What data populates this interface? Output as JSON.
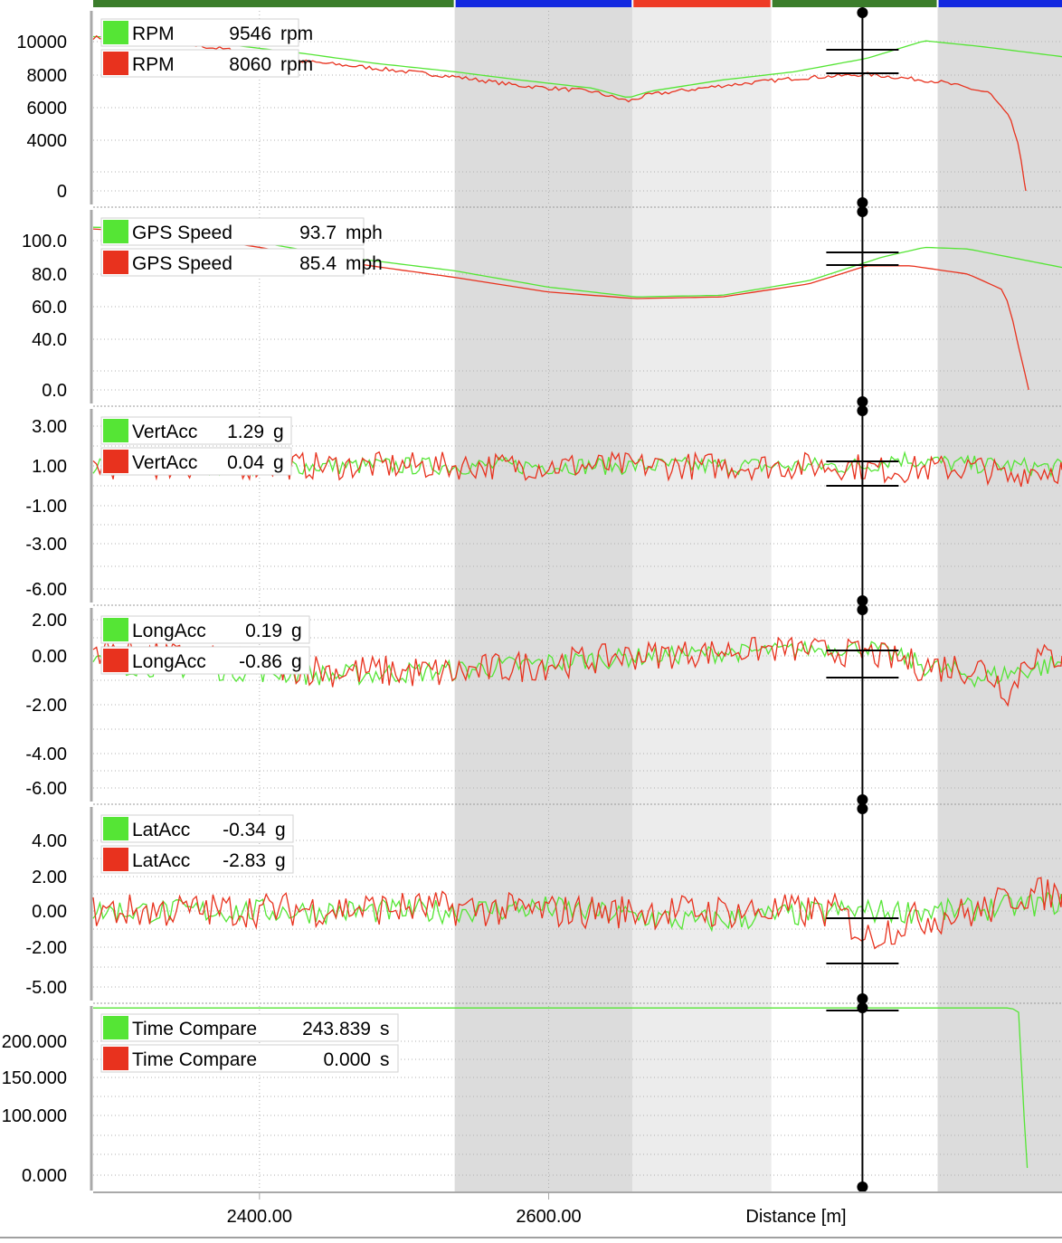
{
  "colors": {
    "lap_a": "#55e535",
    "lap_b": "#e8321e",
    "cursor": "#000000",
    "sector_green": "#3b7d2b",
    "sector_blue": "#1328e0",
    "sector_red": "#ee3a25",
    "shade_dark": "#dcdcdc",
    "shade_light": "#ececec"
  },
  "chart_data": {
    "type": "line",
    "xlabel": "Distance [m]",
    "x_range": [
      2285,
      2955
    ],
    "x_ticks": [
      "2400.00",
      "2600.00"
    ],
    "x_tick_values": [
      2400,
      2600
    ],
    "cursor_x": 2817,
    "sector_bar": [
      {
        "from": 2285,
        "to": 2535,
        "color": "sector_green"
      },
      {
        "from": 2535,
        "to": 2658,
        "color": "sector_blue"
      },
      {
        "from": 2658,
        "to": 2754,
        "color": "sector_red"
      },
      {
        "from": 2754,
        "to": 2869,
        "color": "sector_green"
      },
      {
        "from": 2869,
        "to": 2955,
        "color": "sector_blue"
      }
    ],
    "shaded_bands": [
      {
        "from": 2535,
        "to": 2658,
        "tone": "shade_dark"
      },
      {
        "from": 2658,
        "to": 2754,
        "tone": "shade_light"
      },
      {
        "from": 2869,
        "to": 2955,
        "tone": "shade_dark"
      }
    ],
    "panels": [
      {
        "id": "rpm",
        "y_ticks": [
          "10000",
          "8000",
          "6000",
          "4000",
          "0"
        ],
        "y_tick_values": [
          10000,
          8000,
          6000,
          4000,
          0
        ],
        "legend": [
          {
            "name": "RPM",
            "value": "9546",
            "unit": "rpm"
          },
          {
            "name": "RPM",
            "value": "8060",
            "unit": "rpm"
          }
        ],
        "series": [
          {
            "points": [
              [
                2285,
                10300
              ],
              [
                2330,
                10200
              ],
              [
                2380,
                9800
              ],
              [
                2430,
                9300
              ],
              [
                2480,
                8700
              ],
              [
                2535,
                8200
              ],
              [
                2580,
                7700
              ],
              [
                2630,
                7200
              ],
              [
                2655,
                6600
              ],
              [
                2670,
                7000
              ],
              [
                2720,
                7700
              ],
              [
                2770,
                8200
              ],
              [
                2820,
                9000
              ],
              [
                2860,
                10050
              ],
              [
                2900,
                9700
              ],
              [
                2955,
                9100
              ]
            ],
            "noise": 0
          },
          {
            "points": [
              [
                2285,
                10250
              ],
              [
                2330,
                10050
              ],
              [
                2380,
                9500
              ],
              [
                2420,
                8900
              ],
              [
                2470,
                8500
              ],
              [
                2535,
                7900
              ],
              [
                2580,
                7350
              ],
              [
                2630,
                7000
              ],
              [
                2655,
                6400
              ],
              [
                2670,
                6800
              ],
              [
                2720,
                7350
              ],
              [
                2770,
                7800
              ],
              [
                2820,
                8050
              ],
              [
                2870,
                7600
              ],
              [
                2905,
                6900
              ],
              [
                2920,
                5200
              ],
              [
                2925,
                3500
              ],
              [
                2930,
                0
              ]
            ],
            "noise": 120
          }
        ]
      },
      {
        "id": "speed",
        "y_ticks": [
          "100.0",
          "80.0",
          "60.0",
          "40.0",
          "0.0"
        ],
        "y_tick_values": [
          100,
          80,
          60,
          40,
          0
        ],
        "legend": [
          {
            "name": "GPS Speed",
            "value": "93.7",
            "unit": "mph"
          },
          {
            "name": "GPS Speed",
            "value": "85.4",
            "unit": "mph"
          }
        ],
        "series": [
          {
            "points": [
              [
                2285,
                108
              ],
              [
                2340,
                107
              ],
              [
                2400,
                99
              ],
              [
                2460,
                90
              ],
              [
                2535,
                82
              ],
              [
                2600,
                72
              ],
              [
                2660,
                66
              ],
              [
                2720,
                67
              ],
              [
                2780,
                76
              ],
              [
                2830,
                90
              ],
              [
                2860,
                96
              ],
              [
                2890,
                95
              ],
              [
                2955,
                84
              ]
            ],
            "noise": 0
          },
          {
            "points": [
              [
                2285,
                107
              ],
              [
                2340,
                104
              ],
              [
                2400,
                96
              ],
              [
                2460,
                87
              ],
              [
                2535,
                78
              ],
              [
                2600,
                69
              ],
              [
                2660,
                65
              ],
              [
                2720,
                66
              ],
              [
                2780,
                74
              ],
              [
                2820,
                85
              ],
              [
                2850,
                85
              ],
              [
                2890,
                80
              ],
              [
                2915,
                70
              ],
              [
                2922,
                48
              ],
              [
                2928,
                20
              ],
              [
                2932,
                0
              ]
            ],
            "noise": 0
          }
        ]
      },
      {
        "id": "vertacc",
        "y_ticks": [
          "3.00",
          "1.00",
          "-1.00",
          "-3.00",
          "-6.00"
        ],
        "y_tick_values": [
          3,
          1,
          -1,
          -3,
          -6
        ],
        "legend": [
          {
            "name": "VertAcc",
            "value": "1.29",
            "unit": "g"
          },
          {
            "name": "VertAcc",
            "value": "0.04",
            "unit": "g"
          }
        ],
        "series": [
          {
            "points": [
              [
                2285,
                1.0
              ],
              [
                2820,
                1.0
              ],
              [
                2840,
                1.4
              ],
              [
                2880,
                1.1
              ],
              [
                2955,
                0.9
              ]
            ],
            "noise": 0.45
          },
          {
            "points": [
              [
                2285,
                1.0
              ],
              [
                2810,
                1.0
              ],
              [
                2830,
                0.8
              ],
              [
                2900,
                0.9
              ],
              [
                2920,
                0.3
              ],
              [
                2930,
                0.8
              ],
              [
                2955,
                0.8
              ]
            ],
            "noise": 0.7
          }
        ]
      },
      {
        "id": "longacc",
        "y_ticks": [
          "2.00",
          "0.00",
          "-2.00",
          "-4.00",
          "-6.00"
        ],
        "y_tick_values": [
          2,
          0,
          -2,
          -4,
          -6
        ],
        "legend": [
          {
            "name": "LongAcc",
            "value": "0.19",
            "unit": "g"
          },
          {
            "name": "LongAcc",
            "value": "-0.86",
            "unit": "g"
          }
        ],
        "series": [
          {
            "points": [
              [
                2285,
                -0.3
              ],
              [
                2450,
                -0.8
              ],
              [
                2535,
                -0.6
              ],
              [
                2660,
                0.0
              ],
              [
                2760,
                0.3
              ],
              [
                2820,
                0.5
              ],
              [
                2860,
                -0.4
              ],
              [
                2900,
                -0.9
              ],
              [
                2955,
                -0.3
              ]
            ],
            "noise": 0.45
          },
          {
            "points": [
              [
                2285,
                0.4
              ],
              [
                2450,
                -0.6
              ],
              [
                2535,
                -0.7
              ],
              [
                2660,
                0.1
              ],
              [
                2760,
                0.4
              ],
              [
                2820,
                0.2
              ],
              [
                2860,
                -0.4
              ],
              [
                2900,
                -0.5
              ],
              [
                2920,
                -1.5
              ],
              [
                2930,
                0.0
              ],
              [
                2955,
                0.0
              ]
            ],
            "noise": 0.7
          }
        ]
      },
      {
        "id": "latacc",
        "y_ticks": [
          "4.00",
          "2.00",
          "0.00",
          "-2.00",
          "-5.00"
        ],
        "y_tick_values": [
          4,
          2,
          0,
          -2,
          -5
        ],
        "legend": [
          {
            "name": "LatAcc",
            "value": "-0.34",
            "unit": "g"
          },
          {
            "name": "LatAcc",
            "value": "-2.83",
            "unit": "g"
          }
        ],
        "series": [
          {
            "points": [
              [
                2285,
                0.0
              ],
              [
                2520,
                0.0
              ],
              [
                2600,
                0.2
              ],
              [
                2700,
                -0.6
              ],
              [
                2800,
                0.0
              ],
              [
                2880,
                0.0
              ],
              [
                2955,
                0.5
              ]
            ],
            "noise": 0.7
          },
          {
            "points": [
              [
                2285,
                0.0
              ],
              [
                2520,
                0.2
              ],
              [
                2600,
                0.0
              ],
              [
                2700,
                0.0
              ],
              [
                2800,
                0.0
              ],
              [
                2820,
                -1.5
              ],
              [
                2850,
                -0.5
              ],
              [
                2900,
                0.0
              ],
              [
                2920,
                0.8
              ],
              [
                2930,
                1.0
              ],
              [
                2955,
                1.0
              ]
            ],
            "noise": 1.0
          }
        ]
      },
      {
        "id": "timecompare",
        "y_ticks": [
          "200.000",
          "150.000",
          "100.000",
          "0.000"
        ],
        "y_tick_values": [
          200,
          150,
          100,
          0
        ],
        "legend": [
          {
            "name": "Time Compare",
            "value": "243.839",
            "unit": "s"
          },
          {
            "name": "Time Compare",
            "value": "0.000",
            "unit": "s"
          }
        ],
        "series": [
          {
            "points": [
              [
                2285,
                246
              ],
              [
                2920,
                246
              ],
              [
                2925,
                240
              ],
              [
                2928,
                160
              ],
              [
                2930,
                20
              ],
              [
                2931,
                12
              ]
            ],
            "noise": 0
          },
          {
            "points": [],
            "noise": 0
          }
        ]
      }
    ]
  }
}
